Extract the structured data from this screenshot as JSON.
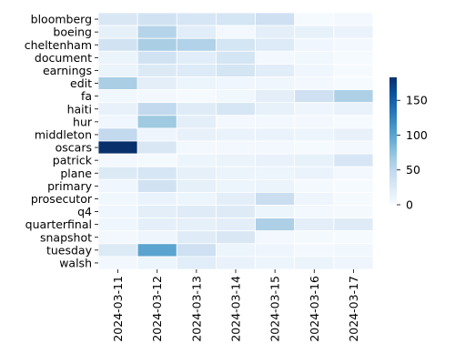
{
  "chart_data": {
    "type": "heatmap",
    "colormap": "Blues",
    "rows": [
      "bloomberg",
      "boeing",
      "cheltenham",
      "document",
      "earnings",
      "edit",
      "fa",
      "haiti",
      "hur",
      "middleton",
      "oscars",
      "patrick",
      "plane",
      "primary",
      "prosecutor",
      "q4",
      "quarterfinal",
      "snapshot",
      "tuesday",
      "walsh"
    ],
    "columns": [
      "2024-03-11",
      "2024-03-12",
      "2024-03-13",
      "2024-03-14",
      "2024-03-15",
      "2024-03-16",
      "2024-03-17"
    ],
    "values": [
      [
        28,
        35,
        30,
        32,
        38,
        2,
        5
      ],
      [
        16,
        55,
        20,
        5,
        18,
        15,
        12
      ],
      [
        35,
        62,
        58,
        32,
        24,
        7,
        4
      ],
      [
        11,
        35,
        20,
        32,
        5,
        6,
        2
      ],
      [
        11,
        25,
        24,
        32,
        20,
        7,
        2
      ],
      [
        62,
        18,
        10,
        7,
        7,
        5,
        2
      ],
      [
        6,
        4,
        2,
        6,
        18,
        38,
        60
      ],
      [
        14,
        48,
        22,
        30,
        15,
        8,
        13
      ],
      [
        7,
        68,
        18,
        4,
        5,
        4,
        2
      ],
      [
        48,
        8,
        14,
        12,
        12,
        9,
        14
      ],
      [
        183,
        28,
        5,
        4,
        5,
        2,
        4
      ],
      [
        4,
        3,
        9,
        11,
        13,
        15,
        30
      ],
      [
        25,
        30,
        16,
        11,
        10,
        12,
        4
      ],
      [
        7,
        35,
        16,
        9,
        11,
        3,
        2
      ],
      [
        6,
        12,
        9,
        18,
        42,
        8,
        2
      ],
      [
        7,
        18,
        22,
        23,
        9,
        5,
        3
      ],
      [
        7,
        17,
        16,
        18,
        60,
        18,
        22
      ],
      [
        5,
        8,
        22,
        28,
        5,
        3,
        2
      ],
      [
        25,
        100,
        38,
        10,
        8,
        4,
        6
      ],
      [
        5,
        10,
        20,
        13,
        9,
        11,
        8
      ]
    ],
    "colorbar": {
      "min": 0,
      "max": 183,
      "ticks": [
        0,
        50,
        100,
        150
      ]
    }
  }
}
